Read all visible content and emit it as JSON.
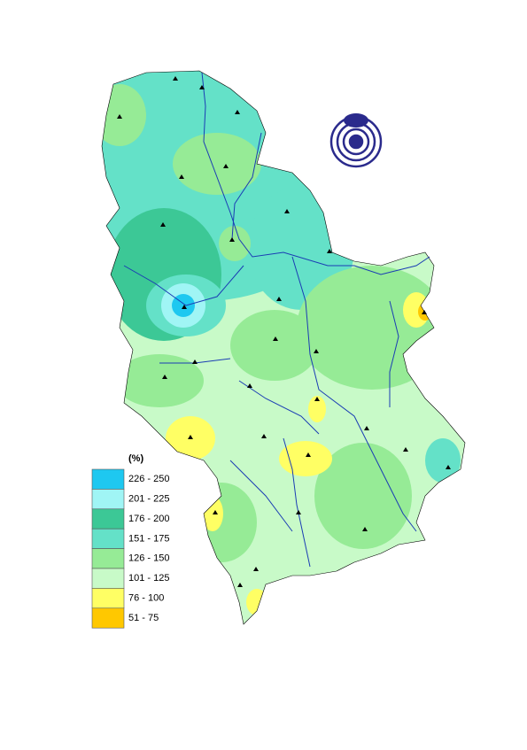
{
  "legend": {
    "title": "(%)",
    "items": [
      {
        "label": "226 - 250",
        "color": "#1ec8f0"
      },
      {
        "label": "201 - 225",
        "color": "#a0f5f5"
      },
      {
        "label": "176 - 200",
        "color": "#3cc896"
      },
      {
        "label": "151 - 175",
        "color": "#64e1c8"
      },
      {
        "label": "126 - 150",
        "color": "#96eb96"
      },
      {
        "label": "101 - 125",
        "color": "#c8fac8"
      },
      {
        "label": "76 - 100",
        "color": "#ffff64"
      },
      {
        "label": "51 - 75",
        "color": "#ffc800"
      }
    ]
  }
}
